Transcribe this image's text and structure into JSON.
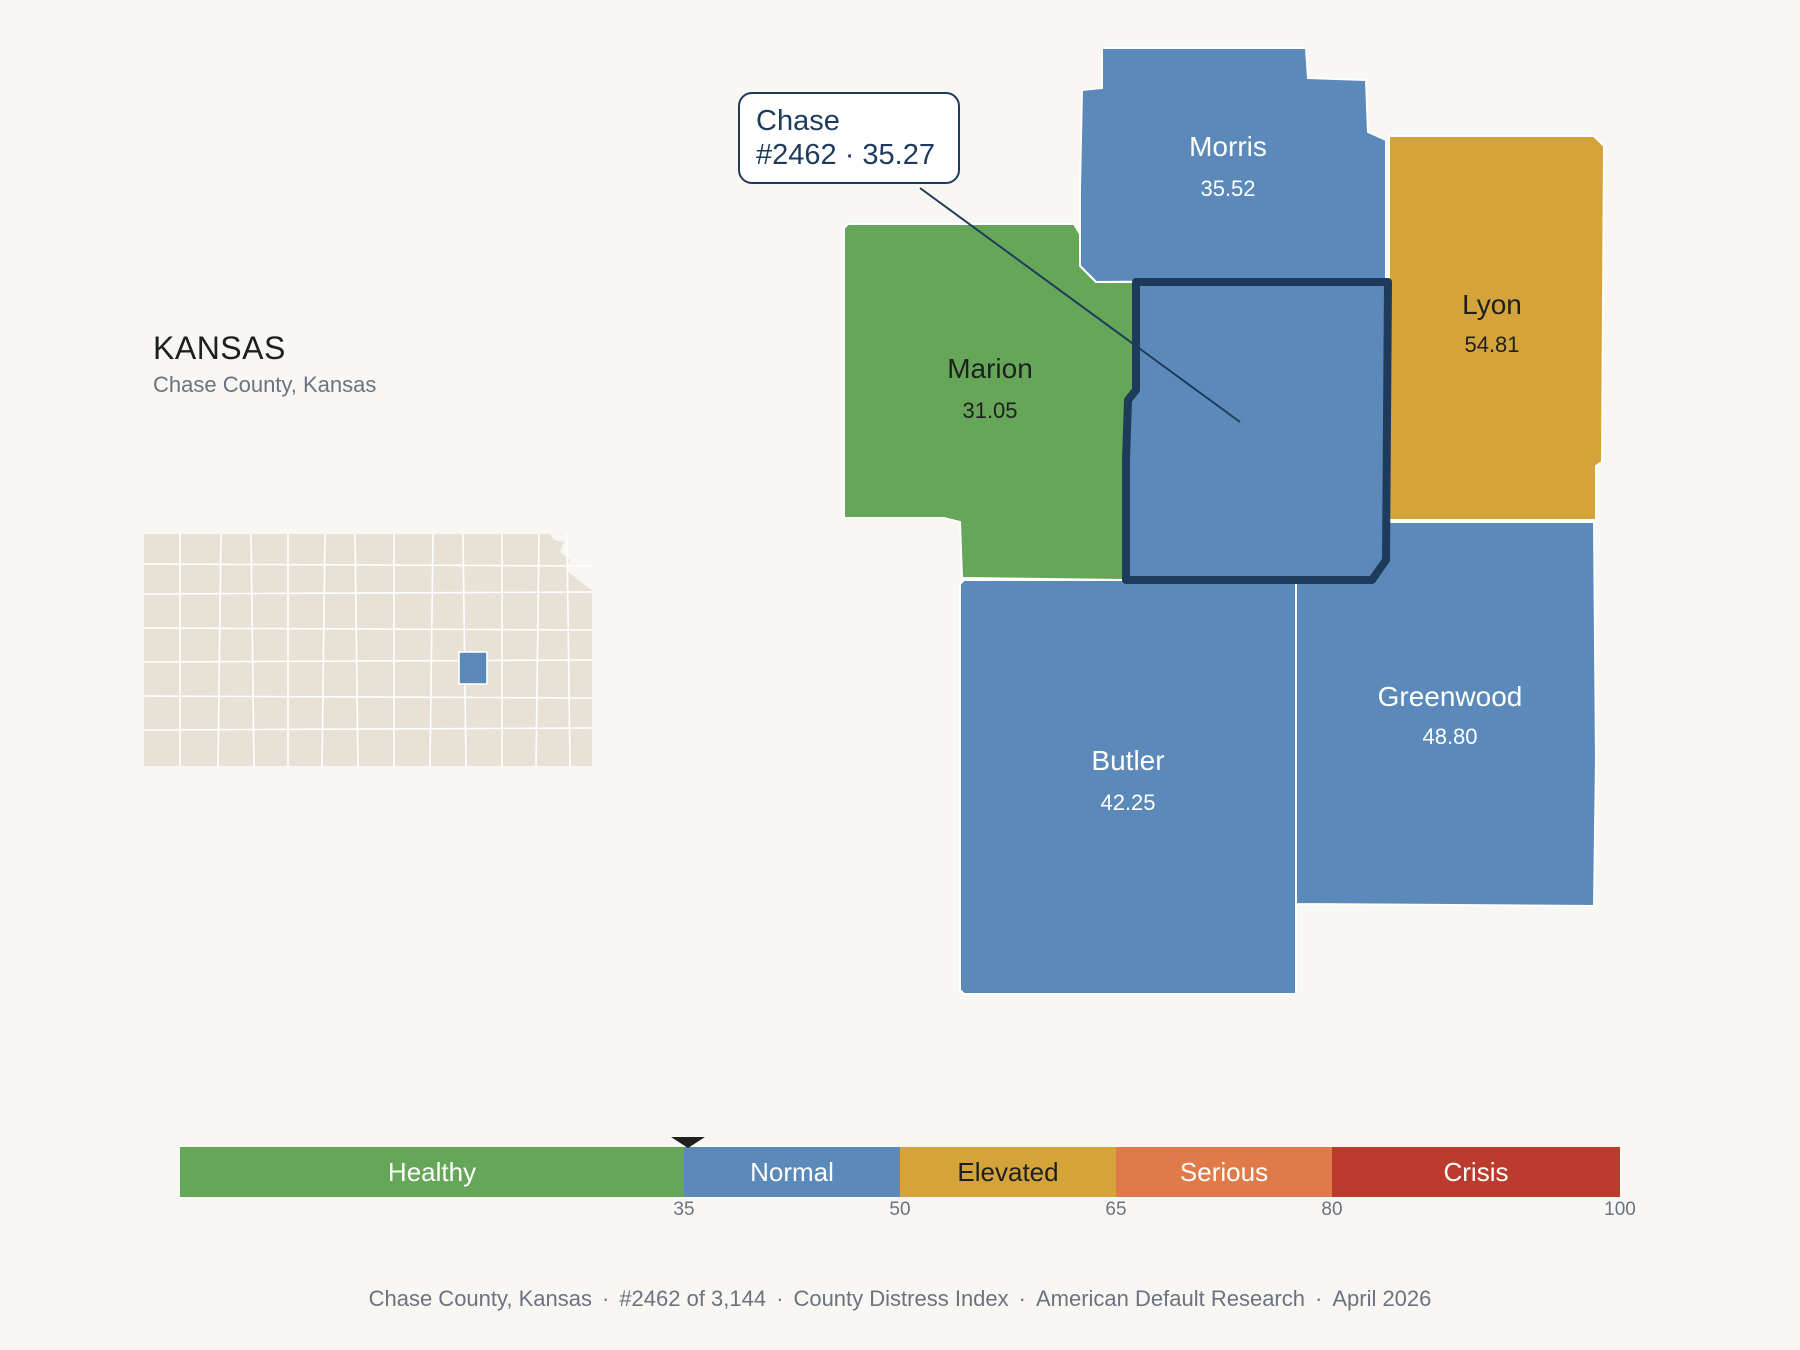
{
  "state": {
    "title": "KANSAS",
    "subtitle": "Chase County, Kansas"
  },
  "colors": {
    "healthy": "#66a658",
    "normal": "#5b8aba",
    "elevated": "#d4a43b",
    "serious": "#e07a48",
    "crisis": "#bb3c2c",
    "highlight_border": "#1f3b5c",
    "locator_fill": "#e8e2d6"
  },
  "counties": [
    {
      "name": "Morris",
      "value": "35.52",
      "category": "normal"
    },
    {
      "name": "Lyon",
      "value": "54.81",
      "category": "elevated"
    },
    {
      "name": "Marion",
      "value": "31.05",
      "category": "healthy"
    },
    {
      "name": "Chase",
      "value": "35.27",
      "category": "normal"
    },
    {
      "name": "Greenwood",
      "value": "48.80",
      "category": "normal"
    },
    {
      "name": "Butler",
      "value": "42.25",
      "category": "normal"
    }
  ],
  "callout": {
    "name": "Chase",
    "detail": "#2462 · 35.27"
  },
  "legend": {
    "min": 0,
    "max": 100,
    "current_value": 35.27,
    "segments": [
      {
        "label": "Healthy",
        "from": 0,
        "to": 35,
        "category": "healthy"
      },
      {
        "label": "Normal",
        "from": 35,
        "to": 50,
        "category": "normal"
      },
      {
        "label": "Elevated",
        "from": 50,
        "to": 65,
        "category": "elevated"
      },
      {
        "label": "Serious",
        "from": 65,
        "to": 80,
        "category": "serious"
      },
      {
        "label": "Crisis",
        "from": 80,
        "to": 100,
        "category": "crisis"
      }
    ],
    "ticks": [
      "35",
      "50",
      "65",
      "80",
      "100"
    ]
  },
  "footer": [
    "Chase County, Kansas",
    "#2462 of 3,144",
    "County Distress Index",
    "American Default Research",
    "April 2026"
  ]
}
